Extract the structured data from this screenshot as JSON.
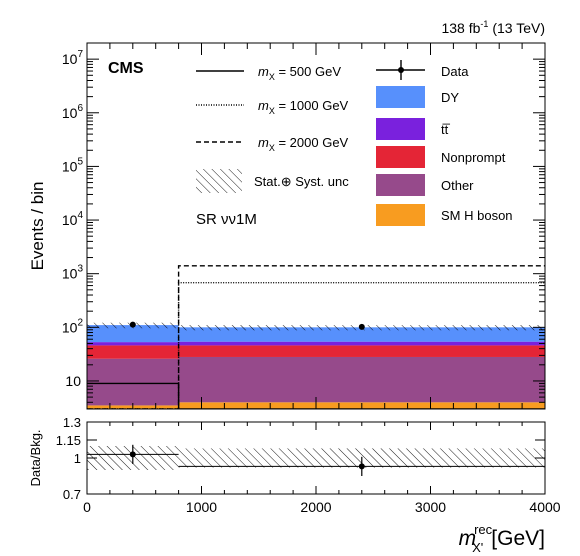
{
  "header": {
    "lumi": "138 fb",
    "lumi_exp": "-1",
    "energy": "(13 TeV)"
  },
  "labels": {
    "cms": "CMS",
    "region": "SR νν1M",
    "ylabel_top": "Events / bin",
    "ylabel_bottom": "Data/Bkg.",
    "xlabel_main": "m",
    "xlabel_sub": "X'",
    "xlabel_sup": "rec",
    "xlabel_unit": "[GeV]"
  },
  "legend": {
    "signals": [
      {
        "key": "sig500",
        "prefix": "m",
        "sub": "X",
        "text": " = 500 GeV",
        "dash": "solid"
      },
      {
        "key": "sig1000",
        "prefix": "m",
        "sub": "X",
        "text": " = 1000 GeV",
        "dash": "dotted"
      },
      {
        "key": "sig2000",
        "prefix": "m",
        "sub": "X",
        "text": " = 2000 GeV",
        "dash": "dashed"
      }
    ],
    "unc_label": "Stat.⊕ Syst. unc",
    "data_label": "Data",
    "backgrounds": [
      {
        "key": "dy",
        "label": "DY",
        "color": "#5790fc"
      },
      {
        "key": "tt",
        "label": "tt̅",
        "color": "#7a21dd"
      },
      {
        "key": "nonprompt",
        "label": "Nonprompt",
        "color": "#e42536"
      },
      {
        "key": "other",
        "label": "Other",
        "color": "#964a8b"
      },
      {
        "key": "smh",
        "label": "SM H boson",
        "color": "#f89c20"
      }
    ]
  },
  "chart_data": {
    "type": "bar",
    "x_bins": [
      [
        0,
        800
      ],
      [
        800,
        4000
      ]
    ],
    "x_range": [
      0,
      4000
    ],
    "y_range": [
      3,
      20000000
    ],
    "y_scale": "log",
    "y_ticks": [
      10,
      100,
      1000,
      10000,
      100000,
      1000000,
      10000000
    ],
    "y_tick_labels": [
      "10",
      "10",
      "10",
      "10",
      "10",
      "10",
      "10"
    ],
    "y_tick_exps": [
      "",
      "2",
      "3",
      "4",
      "5",
      "6",
      "7"
    ],
    "x_ticks": [
      0,
      1000,
      2000,
      3000,
      4000
    ],
    "x_tick_labels": [
      "0",
      "1000",
      "2000",
      "3000",
      "4000"
    ],
    "stack": [
      {
        "name": "SM H boson",
        "values": [
          3.5,
          4.0
        ]
      },
      {
        "name": "Other",
        "values": [
          26,
          28
        ]
      },
      {
        "name": "Nonprompt",
        "values": [
          46,
          46
        ]
      },
      {
        "name": "tt̅",
        "values": [
          53,
          54
        ]
      },
      {
        "name": "DY",
        "values": [
          110,
          100
        ]
      }
    ],
    "data": {
      "x": [
        400,
        2400
      ],
      "y": [
        112,
        102
      ],
      "yerr": [
        11,
        10
      ]
    },
    "signals": [
      {
        "name": "m_X = 500 GeV",
        "values": [
          9,
          0
        ]
      },
      {
        "name": "m_X = 1000 GeV",
        "values": [
          0,
          680
        ]
      },
      {
        "name": "m_X = 2000 GeV",
        "values": [
          0,
          1400
        ]
      }
    ],
    "unc_band": {
      "low": [
        96,
        88
      ],
      "high": [
        122,
        110
      ]
    },
    "ratio": {
      "y_range": [
        0.7,
        1.3
      ],
      "y_ticks": [
        0.7,
        1.0,
        1.15,
        1.3
      ],
      "y_tick_labels": [
        "0.7",
        "1",
        "1.15",
        "1.3"
      ],
      "points": {
        "x": [
          400,
          2400
        ],
        "y": [
          1.03,
          0.93
        ],
        "yerr": [
          0.08,
          0.08
        ]
      },
      "band": {
        "low": [
          0.9,
          0.92
        ],
        "high": [
          1.1,
          1.08
        ]
      }
    }
  }
}
